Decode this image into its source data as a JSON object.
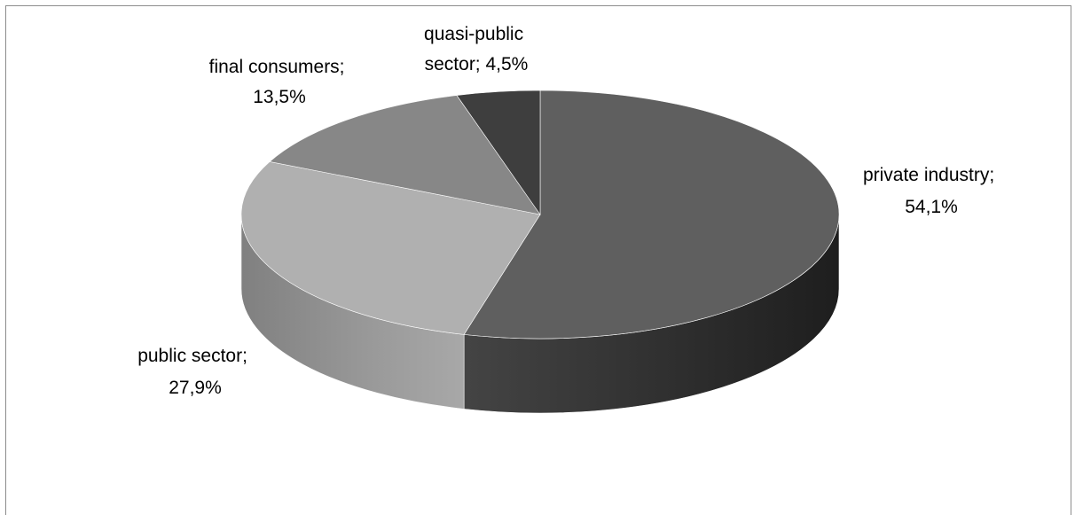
{
  "chart_data": {
    "type": "pie",
    "style": "3d",
    "slices": [
      {
        "name": "private industry",
        "value": 54.1,
        "label": "54,1%",
        "color": "#5f5f5f"
      },
      {
        "name": "public sector",
        "value": 27.9,
        "label": "27,9%",
        "color": "#b0b0b0"
      },
      {
        "name": "final consumers",
        "value": 13.5,
        "label": "13,5%",
        "color": "#878787"
      },
      {
        "name": "quasi-public sector",
        "value": 4.5,
        "label": "4,5%",
        "color": "#3e3e3e"
      }
    ],
    "label_lines": [
      [
        "private industry;",
        "54,1%"
      ],
      [
        "public sector;",
        "27,9%"
      ],
      [
        "final consumers;",
        "13,5%"
      ],
      [
        "quasi-public",
        "sector; 4,5%"
      ]
    ],
    "legend": "none"
  }
}
